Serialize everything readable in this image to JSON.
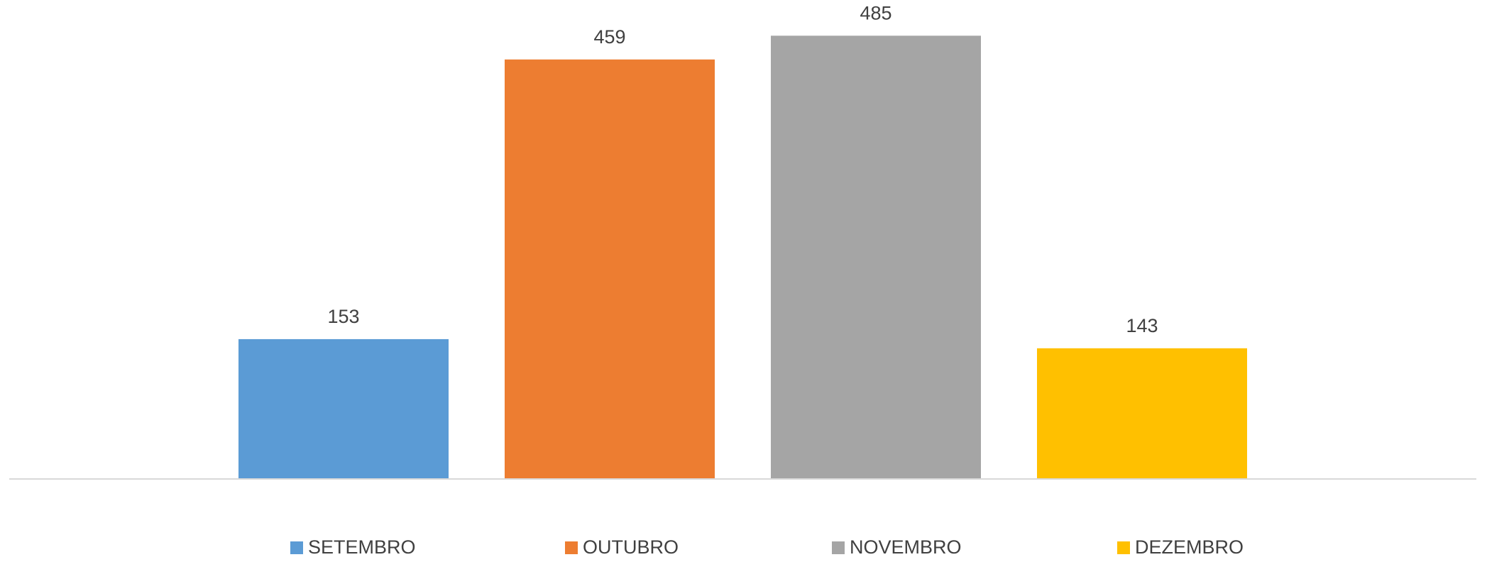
{
  "chart_data": {
    "type": "bar",
    "categories": [
      null
    ],
    "series": [
      {
        "name": "SETEMBRO",
        "color": "#5b9bd5",
        "values": [
          153
        ]
      },
      {
        "name": "OUTUBRO",
        "color": "#ed7d31",
        "values": [
          459
        ]
      },
      {
        "name": "NOVEMBRO",
        "color": "#a5a5a5",
        "values": [
          485
        ]
      },
      {
        "name": "DEZEMBRO",
        "color": "#ffc000",
        "values": [
          143
        ]
      }
    ],
    "ylim": [
      0,
      500
    ],
    "legend": "bottom"
  }
}
